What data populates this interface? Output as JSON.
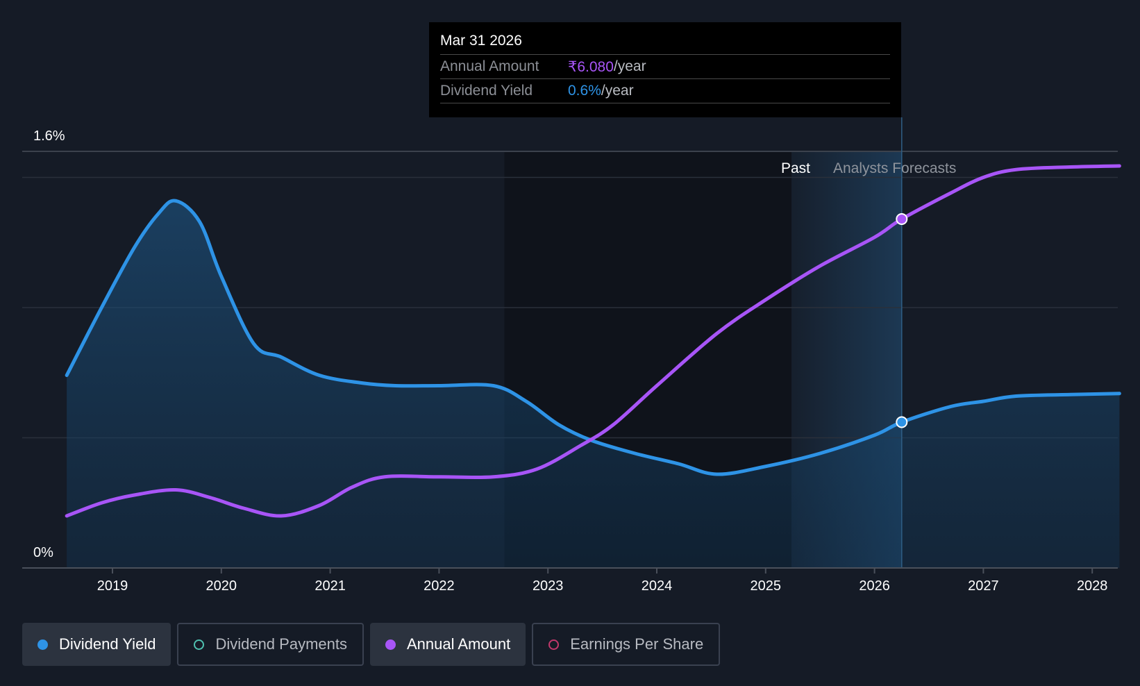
{
  "tooltip": {
    "date": "Mar 31 2026",
    "rows": [
      {
        "label": "Annual Amount",
        "value": "₹6.080",
        "unit": "/year"
      },
      {
        "label": "Dividend Yield",
        "value": "0.6%",
        "unit": "/year"
      }
    ]
  },
  "legend": [
    {
      "label": "Dividend Yield",
      "active": true,
      "color": "#2e93e6"
    },
    {
      "label": "Dividend Payments",
      "active": false,
      "color": "#4fc1b0"
    },
    {
      "label": "Annual Amount",
      "active": true,
      "color": "#a855f7"
    },
    {
      "label": "Earnings Per Share",
      "active": false,
      "color": "#c2386b"
    }
  ],
  "chart_data": {
    "type": "area",
    "y_tick_labels": [
      "1.6%",
      "0%"
    ],
    "ylim": [
      0,
      1.6
    ],
    "x_tick_labels": [
      "2019",
      "2020",
      "2021",
      "2022",
      "2023",
      "2024",
      "2025",
      "2026",
      "2027",
      "2028"
    ],
    "xlim": [
      2018.4,
      2028.25
    ],
    "past_label": "Past",
    "forecast_label": "Analysts Forecasts",
    "forecast_start": 2025.25,
    "highlight_date": 2026.25,
    "grid": true,
    "series": [
      {
        "name": "Dividend Yield",
        "color": "#2e93e6",
        "filled": true,
        "points": [
          [
            2018.58,
            0.74
          ],
          [
            2018.9,
            1.0
          ],
          [
            2019.2,
            1.23
          ],
          [
            2019.42,
            1.36
          ],
          [
            2019.58,
            1.41
          ],
          [
            2019.8,
            1.33
          ],
          [
            2020.0,
            1.12
          ],
          [
            2020.3,
            0.86
          ],
          [
            2020.55,
            0.81
          ],
          [
            2020.9,
            0.74
          ],
          [
            2021.3,
            0.71
          ],
          [
            2021.6,
            0.7
          ],
          [
            2022.0,
            0.7
          ],
          [
            2022.5,
            0.7
          ],
          [
            2022.8,
            0.64
          ],
          [
            2023.1,
            0.55
          ],
          [
            2023.4,
            0.49
          ],
          [
            2023.8,
            0.44
          ],
          [
            2024.2,
            0.4
          ],
          [
            2024.55,
            0.36
          ],
          [
            2025.0,
            0.39
          ],
          [
            2025.5,
            0.44
          ],
          [
            2026.0,
            0.51
          ],
          [
            2026.25,
            0.56
          ],
          [
            2026.7,
            0.62
          ],
          [
            2027.0,
            0.64
          ],
          [
            2027.3,
            0.66
          ],
          [
            2027.8,
            0.666
          ],
          [
            2028.25,
            0.67
          ]
        ]
      },
      {
        "name": "Annual Amount",
        "color": "#a855f7",
        "filled": false,
        "points": [
          [
            2018.58,
            0.2
          ],
          [
            2018.9,
            0.25
          ],
          [
            2019.2,
            0.28
          ],
          [
            2019.58,
            0.3
          ],
          [
            2019.9,
            0.27
          ],
          [
            2020.2,
            0.23
          ],
          [
            2020.55,
            0.2
          ],
          [
            2020.9,
            0.24
          ],
          [
            2021.2,
            0.31
          ],
          [
            2021.5,
            0.35
          ],
          [
            2022.0,
            0.35
          ],
          [
            2022.5,
            0.35
          ],
          [
            2022.9,
            0.38
          ],
          [
            2023.3,
            0.47
          ],
          [
            2023.6,
            0.55
          ],
          [
            2024.0,
            0.7
          ],
          [
            2024.55,
            0.9
          ],
          [
            2025.0,
            1.03
          ],
          [
            2025.5,
            1.16
          ],
          [
            2026.0,
            1.27
          ],
          [
            2026.25,
            1.34
          ],
          [
            2026.7,
            1.44
          ],
          [
            2027.0,
            1.5
          ],
          [
            2027.3,
            1.53
          ],
          [
            2027.8,
            1.54
          ],
          [
            2028.25,
            1.544
          ]
        ]
      }
    ]
  }
}
